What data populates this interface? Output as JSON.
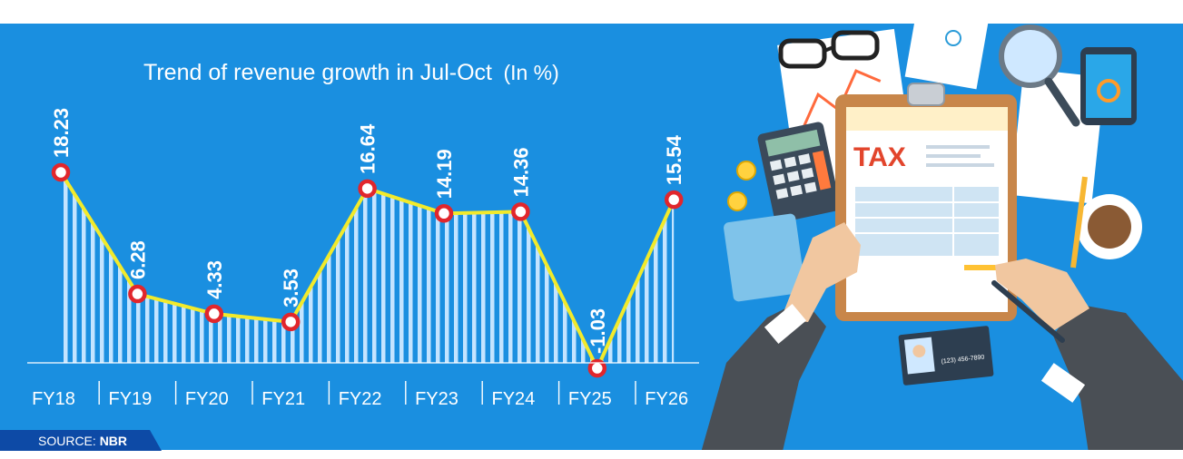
{
  "chart_data": {
    "type": "line",
    "title": "Trend of revenue growth in Jul-Oct",
    "title_unit": "(In %)",
    "categories": [
      "FY18",
      "FY19",
      "FY20",
      "FY21",
      "FY22",
      "FY23",
      "FY24",
      "FY25",
      "FY26"
    ],
    "values": [
      18.23,
      6.28,
      4.33,
      3.53,
      16.64,
      14.19,
      14.36,
      -1.03,
      15.54
    ],
    "value_labels": [
      "18.23",
      "6.28",
      "4.33",
      "3.53",
      "16.64",
      "14.19",
      "14.36",
      "-1.03",
      "15.54"
    ],
    "ylim": [
      -1.03,
      18.23
    ],
    "grid": false,
    "colors": {
      "background": "#1a8fe0",
      "line": "#f2ea2b",
      "marker_fill": "#ffffff",
      "marker_stroke": "#e1262c",
      "hatch": "#bfe3ff"
    }
  },
  "source": {
    "prefix": "SOURCE: ",
    "name": "NBR"
  },
  "illustration": {
    "icon": "tax-document-illustration-icon",
    "text": "TAX",
    "card_phone": "(123) 456-7890"
  }
}
